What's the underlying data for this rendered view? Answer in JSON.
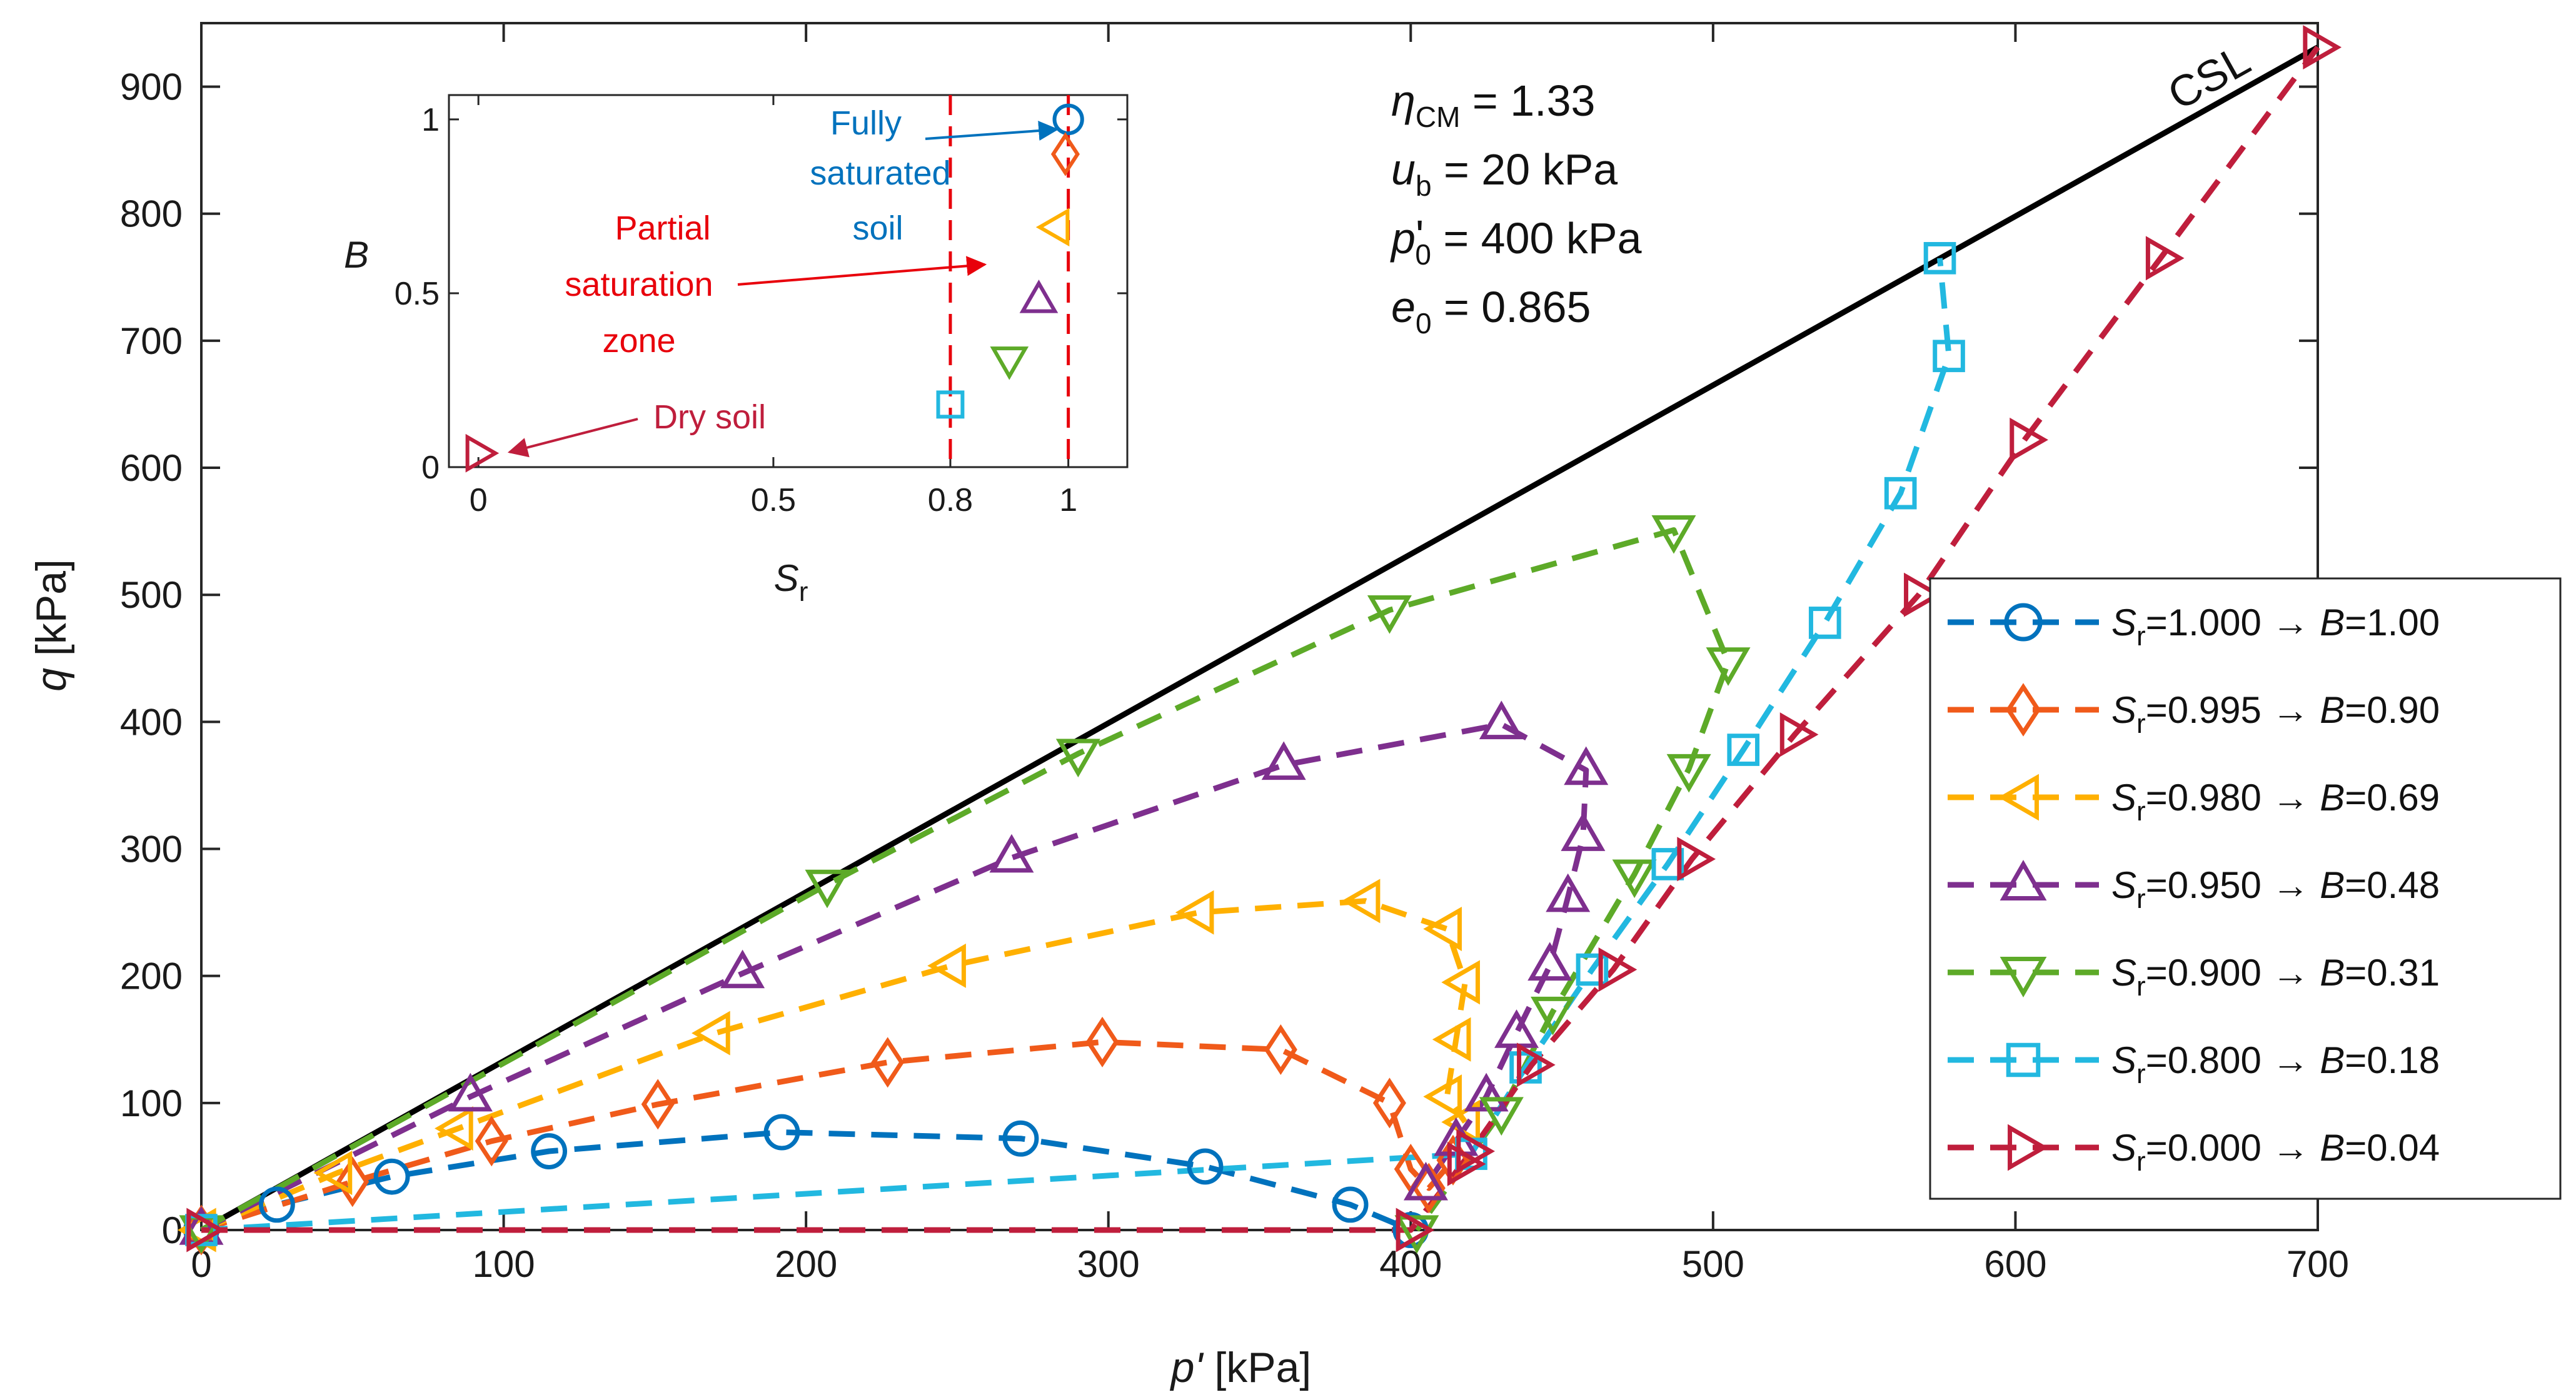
{
  "chart_data": {
    "type": "line",
    "main": {
      "xlabel_var": "p'",
      "xlabel_unit": " [kPa]",
      "ylabel_var": "q",
      "ylabel_unit": " [kPa]",
      "xlim": [
        0,
        700
      ],
      "ylim": [
        0,
        950
      ],
      "xticks": [
        0,
        100,
        200,
        300,
        400,
        500,
        600,
        700
      ],
      "yticks": [
        0,
        100,
        200,
        300,
        400,
        500,
        600,
        700,
        800,
        900
      ],
      "csl": {
        "label": "CSL",
        "x": [
          0,
          700
        ],
        "y": [
          0,
          931
        ]
      },
      "params": [
        {
          "sym": "η",
          "sub": "CM",
          "prime": "",
          "value": " = 1.33"
        },
        {
          "sym": "u",
          "sub": "b",
          "prime": "",
          "value": " = 20 kPa"
        },
        {
          "sym": "p",
          "sub": "0",
          "prime": "'",
          "value": " = 400 kPa"
        },
        {
          "sym": "e",
          "sub": "0",
          "prime": "",
          "value": " = 0.865"
        }
      ],
      "series": [
        {
          "name": "Sr=1.000 → B=1.00",
          "sr": "=1.000",
          "b": "=1.00",
          "marker": "circle",
          "color": "#0072BD",
          "x": [
            0,
            25,
            63,
            115,
            192,
            271,
            332,
            380,
            400
          ],
          "y": [
            0,
            20,
            42,
            62,
            77,
            72,
            50,
            20,
            0
          ]
        },
        {
          "name": "Sr=0.995 → B=0.90",
          "sr": "=0.995",
          "b": "=0.90",
          "marker": "diamond",
          "color": "#F05A1A",
          "x": [
            0,
            50,
            96,
            151,
            227,
            298,
            357,
            393,
            400,
            406,
            414
          ],
          "y": [
            0,
            38,
            70,
            99,
            132,
            148,
            142,
            100,
            48,
            33,
            55
          ]
        },
        {
          "name": "Sr=0.980 → B=0.69",
          "sr": "=0.980",
          "b": "=0.69",
          "marker": "triangle-left",
          "color": "#FFB000",
          "x": [
            0,
            45,
            85,
            170,
            248,
            330,
            385,
            412,
            418,
            415,
            412,
            418
          ],
          "y": [
            0,
            45,
            80,
            155,
            208,
            250,
            259,
            237,
            195,
            150,
            105,
            85
          ]
        },
        {
          "name": "Sr=0.950 → B=0.48",
          "sr": "=0.950",
          "b": "=0.48",
          "marker": "triangle-up",
          "color": "#7E2F8E",
          "x": [
            0,
            89,
            179,
            268,
            358,
            430,
            458,
            457,
            452,
            446,
            435,
            425,
            415,
            405
          ],
          "y": [
            0,
            105,
            202,
            293,
            366,
            398,
            362,
            310,
            262,
            208,
            155,
            105,
            70,
            35
          ]
        },
        {
          "name": "Sr=0.900 → B=0.31",
          "sr": "=0.900",
          "b": "=0.31",
          "marker": "triangle-down",
          "color": "#5DAA28",
          "x": [
            0,
            207,
            290,
            393,
            487,
            505,
            492,
            474,
            447,
            430,
            402
          ],
          "y": [
            0,
            272,
            375,
            488,
            551,
            447,
            363,
            280,
            172,
            93,
            0
          ]
        },
        {
          "name": "Sr=0.800 → B=0.18",
          "sr": "=0.800",
          "b": "=0.18",
          "marker": "square",
          "color": "#22B8E0",
          "x": [
            0,
            420,
            438,
            460,
            485,
            510,
            537,
            562,
            578,
            575
          ],
          "y": [
            0,
            60,
            128,
            205,
            288,
            378,
            478,
            580,
            688,
            765
          ]
        },
        {
          "name": "Sr=0.000 → B=0.04",
          "sr": "=0.000",
          "b": "=0.04",
          "marker": "triangle-right",
          "color": "#BF1E3C",
          "x": [
            0,
            400,
            417,
            420,
            440,
            467,
            493,
            527,
            568,
            603,
            648,
            700
          ],
          "y": [
            0,
            0,
            52,
            62,
            130,
            205,
            292,
            390,
            500,
            622,
            765,
            931
          ]
        }
      ]
    },
    "inset": {
      "xlabel_var": "S",
      "xlabel_sub": "r",
      "ylabel_var": "B",
      "xlim": [
        -0.05,
        1.1
      ],
      "ylim": [
        0,
        1.07
      ],
      "xticks": [
        0,
        0.5,
        0.8,
        1
      ],
      "xtick_labels": [
        "0",
        "0.5",
        "0.8",
        "1"
      ],
      "yticks": [
        0,
        0.5,
        1
      ],
      "ytick_labels": [
        "0",
        "0.5",
        "1"
      ],
      "vlines": [
        0.8,
        1.0
      ],
      "points": [
        {
          "sr": 1.0,
          "b": 1.0,
          "marker": "circle",
          "color": "#0072BD"
        },
        {
          "sr": 0.995,
          "b": 0.9,
          "marker": "diamond",
          "color": "#F05A1A"
        },
        {
          "sr": 0.98,
          "b": 0.69,
          "marker": "triangle-left",
          "color": "#FFB000"
        },
        {
          "sr": 0.95,
          "b": 0.48,
          "marker": "triangle-up",
          "color": "#7E2F8E"
        },
        {
          "sr": 0.9,
          "b": 0.31,
          "marker": "triangle-down",
          "color": "#5DAA28"
        },
        {
          "sr": 0.8,
          "b": 0.18,
          "marker": "square",
          "color": "#22B8E0"
        },
        {
          "sr": 0.0,
          "b": 0.04,
          "marker": "triangle-right",
          "color": "#BF1E3C"
        }
      ],
      "annotations": [
        {
          "lines": [
            "Fully",
            "saturated",
            "soil"
          ],
          "color": "#0072BD",
          "target": "saturated"
        },
        {
          "lines": [
            "Partial",
            "saturation",
            "zone"
          ],
          "color": "#E8000B",
          "target": "partial"
        },
        {
          "lines": [
            "Dry soil"
          ],
          "color": "#BF1E3C",
          "target": "dry"
        }
      ]
    }
  }
}
